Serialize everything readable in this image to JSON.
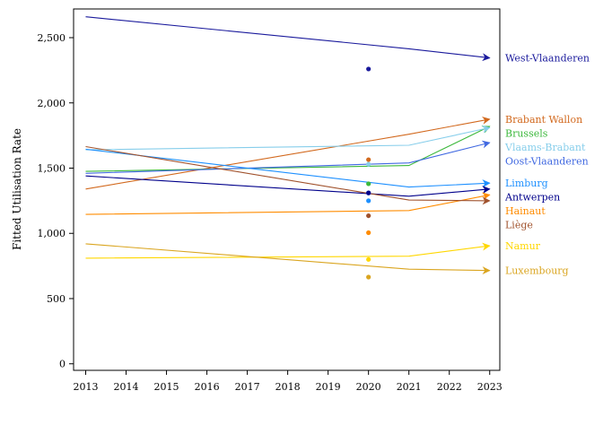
{
  "chart_data": {
    "type": "line",
    "title": "",
    "xlabel": "",
    "ylabel": "Fitted Utilisation Rate",
    "x_ticks": [
      2013,
      2014,
      2015,
      2016,
      2017,
      2018,
      2019,
      2020,
      2021,
      2022,
      2023
    ],
    "y_ticks": [
      0,
      500,
      1000,
      1500,
      2000,
      2500
    ],
    "y_tick_labels": [
      "0",
      "500",
      "1,000",
      "1,500",
      "2,000",
      "2,500"
    ],
    "xlim": [
      2012.7,
      2023.25
    ],
    "ylim": [
      -50,
      2720
    ],
    "grid": false,
    "legend": "direct labels at right end of each line",
    "series": [
      {
        "name": "West-Vlaanderen",
        "color": "#1a1a9c",
        "x": [
          2013,
          2021,
          2023
        ],
        "y": [
          2660,
          2415,
          2345
        ],
        "point_2020": 2260
      },
      {
        "name": "Brabant Wallon",
        "color": "#d2691e",
        "x": [
          2013,
          2021,
          2023
        ],
        "y": [
          1340,
          1760,
          1875
        ],
        "point_2020": 1565
      },
      {
        "name": "Brussels",
        "color": "#3cb83c",
        "x": [
          2013,
          2021,
          2023
        ],
        "y": [
          1475,
          1520,
          1820
        ],
        "point_2020": 1380
      },
      {
        "name": "Vlaams-Brabant",
        "color": "#87ceeb",
        "x": [
          2013,
          2021,
          2023
        ],
        "y": [
          1640,
          1675,
          1810
        ],
        "point_2020": 1530
      },
      {
        "name": "Oost-Vlaanderen",
        "color": "#4169e1",
        "x": [
          2013,
          2021,
          2023
        ],
        "y": [
          1460,
          1540,
          1695
        ],
        "point_2020": 1310
      },
      {
        "name": "Limburg",
        "color": "#1e90ff",
        "x": [
          2013,
          2021,
          2023
        ],
        "y": [
          1645,
          1355,
          1385
        ],
        "point_2020": 1250
      },
      {
        "name": "Antwerpen",
        "color": "#00008b",
        "x": [
          2013,
          2021,
          2023
        ],
        "y": [
          1440,
          1285,
          1340
        ],
        "point_2020": 1310
      },
      {
        "name": "Hainaut",
        "color": "#ff8c00",
        "x": [
          2013,
          2021,
          2023
        ],
        "y": [
          1145,
          1175,
          1295
        ],
        "point_2020": 1005
      },
      {
        "name": "Liège",
        "color": "#a0522d",
        "x": [
          2013,
          2021,
          2023
        ],
        "y": [
          1665,
          1255,
          1250
        ],
        "point_2020": 1135
      },
      {
        "name": "Namur",
        "color": "#ffd700",
        "x": [
          2013,
          2021,
          2023
        ],
        "y": [
          810,
          825,
          905
        ],
        "point_2020": 800
      },
      {
        "name": "Luxembourg",
        "color": "#daa520",
        "x": [
          2013,
          2021,
          2023
        ],
        "y": [
          920,
          725,
          715
        ],
        "point_2020": 665
      }
    ]
  }
}
